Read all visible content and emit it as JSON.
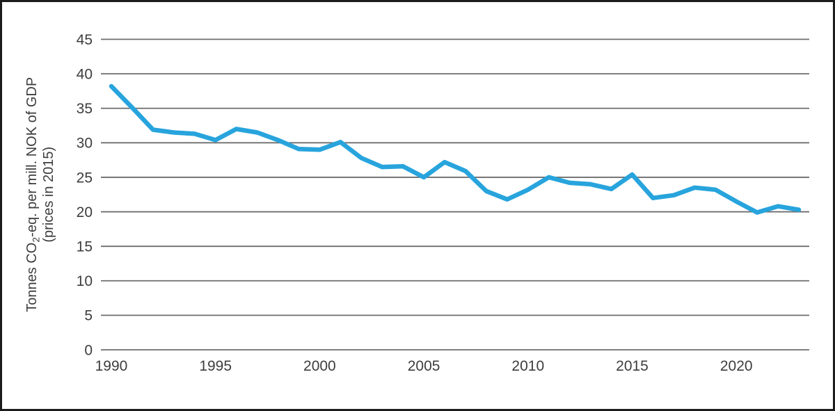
{
  "window": {
    "background": "#ffffff",
    "border_color": "#1c1c1c"
  },
  "chart_data": {
    "type": "line",
    "title": "",
    "xlabel": "",
    "ylabel": {
      "line1_pre": "Tonnes CO",
      "line1_sub": "2",
      "line1_post": "-eq. per mill. NOK of GDP",
      "line2": "(prices in 2015)"
    },
    "x": [
      1990,
      1991,
      1992,
      1993,
      1994,
      1995,
      1996,
      1997,
      1998,
      1999,
      2000,
      2001,
      2002,
      2003,
      2004,
      2005,
      2006,
      2007,
      2008,
      2009,
      2010,
      2011,
      2012,
      2013,
      2014,
      2015,
      2016,
      2017,
      2018,
      2019,
      2020,
      2021,
      2022,
      2023
    ],
    "values": [
      38.2,
      35.1,
      31.9,
      31.5,
      31.3,
      30.4,
      32.0,
      31.5,
      30.4,
      29.1,
      29.0,
      30.1,
      27.8,
      26.5,
      26.6,
      25.0,
      27.2,
      25.9,
      23.0,
      21.8,
      23.2,
      25.0,
      24.2,
      24.0,
      23.3,
      25.4,
      22.0,
      22.4,
      23.5,
      23.2,
      21.5,
      19.9,
      20.8,
      20.3
    ],
    "ylim": [
      0,
      45
    ],
    "yticks": [
      0,
      5,
      10,
      15,
      20,
      25,
      30,
      35,
      40,
      45
    ],
    "xticks": [
      1990,
      1995,
      2000,
      2005,
      2010,
      2015,
      2020
    ],
    "grid": true,
    "legend": "none",
    "colors": {
      "line": "#28a4dd",
      "grid": "#6d6d6d",
      "text": "#3d3d3d"
    }
  }
}
